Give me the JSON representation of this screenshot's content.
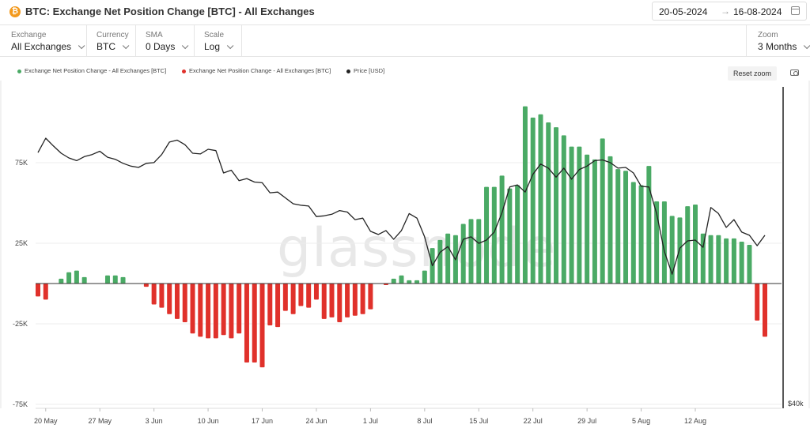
{
  "header": {
    "btc_symbol": "₿",
    "title": "BTC: Exchange Net Position Change [BTC] - All Exchanges",
    "date_from": "20-05-2024",
    "date_arrow": "→",
    "date_to": "16-08-2024"
  },
  "controls": {
    "exchange": {
      "label": "Exchange",
      "value": "All Exchanges"
    },
    "currency": {
      "label": "Currency",
      "value": "BTC"
    },
    "sma": {
      "label": "SMA",
      "value": "0 Days"
    },
    "scale": {
      "label": "Scale",
      "value": "Log"
    },
    "zoom": {
      "label": "Zoom",
      "value": "3 Months"
    }
  },
  "reset_zoom_label": "Reset zoom",
  "watermark": "glassnode",
  "chart_data": {
    "type": "bar",
    "colors": {
      "positive": "#4aaa65",
      "negative": "#e0312b",
      "price": "#222222"
    },
    "legend": [
      {
        "label": "Exchange Net Position Change - All Exchanges [BTC]",
        "color": "#4aaa65"
      },
      {
        "label": "Exchange Net Position Change - All Exchanges [BTC]",
        "color": "#e0312b"
      },
      {
        "label": "Price [USD]",
        "color": "#222222"
      }
    ],
    "x_tick_labels": [
      "20 May",
      "27 May",
      "3 Jun",
      "10 Jun",
      "17 Jun",
      "24 Jun",
      "1 Jul",
      "8 Jul",
      "15 Jul",
      "22 Jul",
      "29 Jul",
      "5 Aug",
      "12 Aug"
    ],
    "y_ticks": [
      {
        "label": "75K",
        "value": 75000
      },
      {
        "label": "25K",
        "value": 25000
      },
      {
        "label": "-25K",
        "value": -25000
      },
      {
        "label": "-75K",
        "value": -75000
      }
    ],
    "ylim": [
      -75000,
      110000
    ],
    "right_axis_label": "$40k",
    "net_position_change": [
      -8000,
      -10000,
      0,
      3000,
      7000,
      8000,
      4000,
      0,
      0,
      5000,
      5000,
      4000,
      0,
      0,
      -2000,
      -13000,
      -15000,
      -19000,
      -22000,
      -24000,
      -31000,
      -33000,
      -34000,
      -34000,
      -32000,
      -34000,
      -31000,
      -49000,
      -49000,
      -52000,
      -26000,
      -27000,
      -17000,
      -19000,
      -14000,
      -15000,
      -10000,
      -22000,
      -21000,
      -24000,
      -21000,
      -20000,
      -19000,
      -16000,
      0,
      -1000,
      3000,
      5000,
      2000,
      2000,
      8000,
      22000,
      27000,
      31000,
      30000,
      37000,
      40000,
      40000,
      60000,
      60000,
      67000,
      59000,
      61000,
      110000,
      103000,
      105000,
      100000,
      97000,
      92000,
      85000,
      85000,
      80000,
      77000,
      90000,
      79000,
      71000,
      70000,
      63000,
      61000,
      73000,
      51000,
      51000,
      42000,
      41000,
      48000,
      49000,
      31000,
      30000,
      30000,
      28000,
      28000,
      26000,
      24000,
      -23000,
      -33000
    ],
    "price_usd": [
      69200,
      71400,
      70200,
      69100,
      68400,
      68000,
      68600,
      68900,
      69400,
      68500,
      68200,
      67600,
      67200,
      67000,
      67600,
      67700,
      68900,
      70800,
      71100,
      70400,
      69100,
      69000,
      69700,
      69500,
      66200,
      66600,
      65100,
      65400,
      64900,
      64800,
      63400,
      63500,
      62700,
      61900,
      61700,
      61600,
      60200,
      60300,
      60500,
      61000,
      60800,
      59800,
      60000,
      58300,
      57900,
      58400,
      57300,
      58400,
      60600,
      60000,
      57600,
      54100,
      55700,
      56400,
      54800,
      57300,
      57600,
      56800,
      57200,
      58200,
      60700,
      64200,
      64500,
      63500,
      66000,
      67500,
      66900,
      65600,
      66900,
      65300,
      66700,
      67200,
      68000,
      68100,
      67700,
      66900,
      67000,
      66200,
      64300,
      64200,
      60600,
      55800,
      53100,
      56200,
      57100,
      57200,
      56300,
      61400,
      60600,
      58800,
      59800,
      58200,
      57800,
      56500,
      57800
    ]
  }
}
